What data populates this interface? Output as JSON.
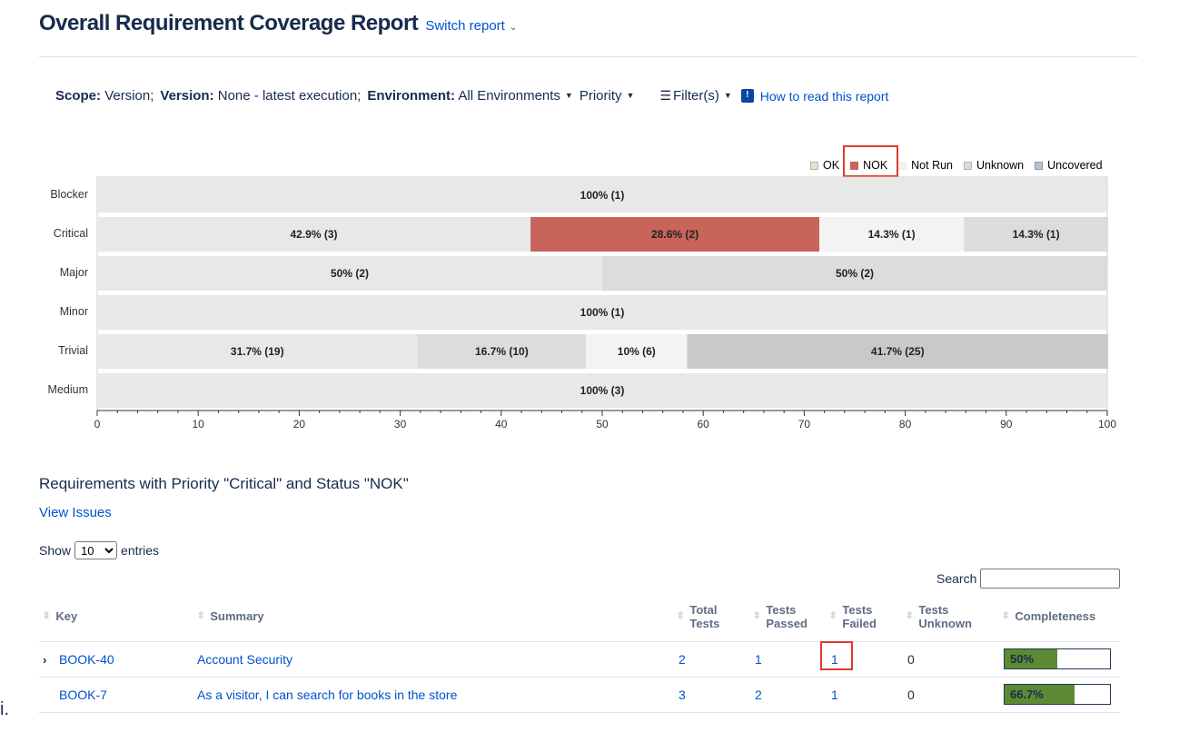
{
  "header": {
    "title": "Overall Requirement Coverage Report",
    "switch_report": "Switch report"
  },
  "filters": {
    "scope_label": "Scope:",
    "scope_value": "Version;",
    "version_label": "Version:",
    "version_value": "None - latest execution;",
    "environment_label": "Environment:",
    "environment_value": "All Environments",
    "priority": "Priority",
    "filters": "Filter(s)",
    "help": "How to read this report"
  },
  "legend": [
    "OK",
    "NOK",
    "Not Run",
    "Unknown",
    "Uncovered"
  ],
  "colors": {
    "OK": "#e8e8e8",
    "NOK": "#c8645a",
    "Not Run": "#f3f3f3",
    "Unknown": "#dcdcdc",
    "Uncovered": "#c9c9c9",
    "accent": "#0052cc",
    "highlight": "#e03a2e",
    "progress": "#5b8a33"
  },
  "chart_data": {
    "type": "bar",
    "orientation": "horizontal",
    "stacked": true,
    "categories": [
      "Blocker",
      "Critical",
      "Major",
      "Minor",
      "Trivial",
      "Medium"
    ],
    "xlim": [
      0,
      100
    ],
    "xticks": [
      "0",
      "10",
      "20",
      "30",
      "40",
      "50",
      "60",
      "70",
      "80",
      "90",
      "100"
    ],
    "rows": [
      {
        "category": "Blocker",
        "segments": [
          {
            "status": "OK",
            "value": 100,
            "label": "100% (1)"
          }
        ]
      },
      {
        "category": "Critical",
        "segments": [
          {
            "status": "OK",
            "value": 42.9,
            "label": "42.9% (3)"
          },
          {
            "status": "NOK",
            "value": 28.6,
            "label": "28.6% (2)"
          },
          {
            "status": "Not Run",
            "value": 14.3,
            "label": "14.3% (1)"
          },
          {
            "status": "Unknown",
            "value": 14.3,
            "label": "14.3% (1)"
          }
        ]
      },
      {
        "category": "Major",
        "segments": [
          {
            "status": "OK",
            "value": 50,
            "label": "50% (2)"
          },
          {
            "status": "Unknown",
            "value": 50,
            "label": "50% (2)"
          }
        ]
      },
      {
        "category": "Minor",
        "segments": [
          {
            "status": "OK",
            "value": 100,
            "label": "100% (1)"
          }
        ]
      },
      {
        "category": "Trivial",
        "segments": [
          {
            "status": "OK",
            "value": 31.7,
            "label": "31.7% (19)"
          },
          {
            "status": "Unknown",
            "value": 16.7,
            "label": "16.7% (10)"
          },
          {
            "status": "Not Run",
            "value": 10,
            "label": "10% (6)"
          },
          {
            "status": "Uncovered",
            "value": 41.7,
            "label": "41.7% (25)"
          }
        ]
      },
      {
        "category": "Medium",
        "segments": [
          {
            "status": "OK",
            "value": 100,
            "label": "100% (3)"
          }
        ]
      }
    ]
  },
  "section": {
    "title": "Requirements with Priority \"Critical\" and Status \"NOK\"",
    "view_issues": "View Issues"
  },
  "table_controls": {
    "show": "Show",
    "entries": "entries",
    "page_size": "10",
    "search": "Search"
  },
  "table": {
    "headers": {
      "key": "Key",
      "summary": "Summary",
      "total_1": "Total",
      "total_2": "Tests",
      "passed_1": "Tests",
      "passed_2": "Passed",
      "failed_1": "Tests",
      "failed_2": "Failed",
      "unknown_1": "Tests",
      "unknown_2": "Unknown",
      "completeness": "Completeness"
    },
    "rows": [
      {
        "key": "BOOK-40",
        "summary": "Account Security",
        "total": "2",
        "passed": "1",
        "failed": "1",
        "unknown": "0",
        "completeness": "50%",
        "completeness_value": 50,
        "expandable": "›"
      },
      {
        "key": "BOOK-7",
        "summary": "As a visitor, I can search for books in the store",
        "total": "3",
        "passed": "2",
        "failed": "1",
        "unknown": "0",
        "completeness": "66.7%",
        "completeness_value": 66.7,
        "expandable": ""
      }
    ]
  },
  "stray_text": "i."
}
